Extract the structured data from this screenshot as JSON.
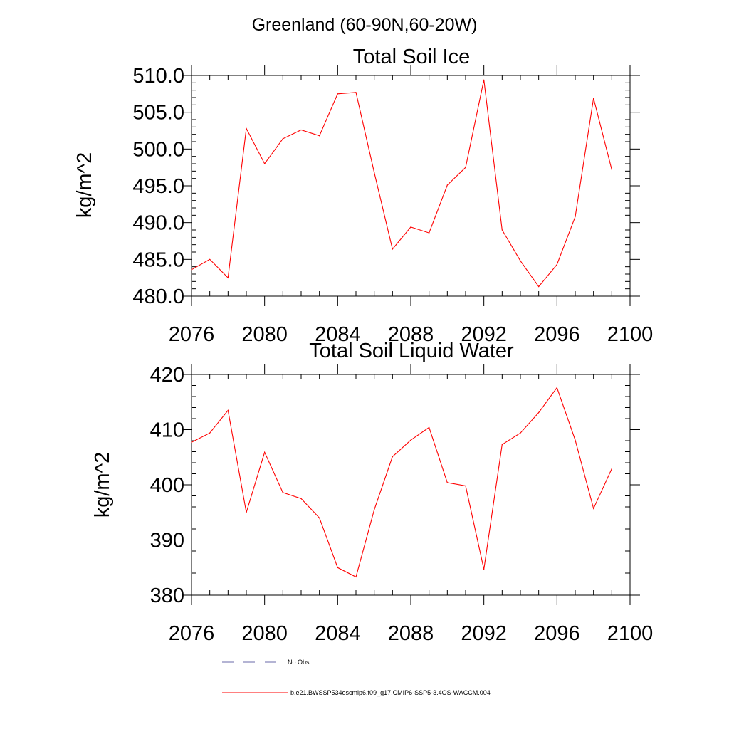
{
  "suptitle": "Greenland (60-90N,60-20W)",
  "colors": {
    "series": "#ff0000",
    "no_obs": "#6a6aaa",
    "axis": "#000000"
  },
  "legend": [
    {
      "label": "No Obs",
      "style": "dashed",
      "color": "#6a6aaa"
    },
    {
      "label": "b.e21.BWSSP534oscmip6.f09_g17.CMIP6-SSP5-3.4OS-WACCM.004",
      "style": "solid",
      "color": "#ff0000"
    }
  ],
  "chart_data": [
    {
      "type": "line",
      "title": "Total Soil Ice",
      "xlabel": "",
      "ylabel": "kg/m^2",
      "xlim": [
        2076,
        2100
      ],
      "ylim": [
        480,
        510
      ],
      "x_ticks": [
        "2076",
        "2080",
        "2084",
        "2088",
        "2092",
        "2096",
        "2100"
      ],
      "y_ticks": [
        "480.0",
        "485.0",
        "490.0",
        "495.0",
        "500.0",
        "505.0",
        "510.0"
      ],
      "grid": false,
      "series": [
        {
          "x": [
            2076,
            2077,
            2078,
            2079,
            2080,
            2081,
            2082,
            2083,
            2084,
            2085,
            2086,
            2087,
            2088,
            2089,
            2090,
            2091,
            2092,
            2093,
            2094,
            2095,
            2096,
            2097,
            2098,
            2099
          ],
          "values": [
            483.6,
            485.0,
            482.5,
            502.8,
            498.0,
            501.4,
            502.6,
            501.8,
            507.5,
            507.7,
            496.8,
            486.4,
            489.4,
            488.6,
            495.1,
            497.5,
            509.4,
            489.0,
            484.8,
            481.3,
            484.3,
            490.8,
            506.9,
            497.2
          ]
        }
      ]
    },
    {
      "type": "line",
      "title": "Total Soil Liquid Water",
      "xlabel": "",
      "ylabel": "kg/m^2",
      "xlim": [
        2076,
        2100
      ],
      "ylim": [
        380,
        420
      ],
      "x_ticks": [
        "2076",
        "2080",
        "2084",
        "2088",
        "2092",
        "2096",
        "2100"
      ],
      "y_ticks": [
        "380",
        "390",
        "400",
        "410",
        "420"
      ],
      "grid": false,
      "series": [
        {
          "x": [
            2076,
            2077,
            2078,
            2079,
            2080,
            2081,
            2082,
            2083,
            2084,
            2085,
            2086,
            2087,
            2088,
            2089,
            2090,
            2091,
            2092,
            2093,
            2094,
            2095,
            2096,
            2097,
            2098,
            2099
          ],
          "values": [
            407.7,
            409.4,
            413.5,
            395.0,
            405.9,
            398.6,
            397.5,
            394.0,
            385.0,
            383.3,
            395.5,
            405.1,
            408.1,
            410.4,
            400.4,
            399.8,
            384.7,
            407.3,
            409.4,
            413.1,
            417.6,
            408.1,
            395.7,
            402.9
          ]
        }
      ]
    }
  ]
}
